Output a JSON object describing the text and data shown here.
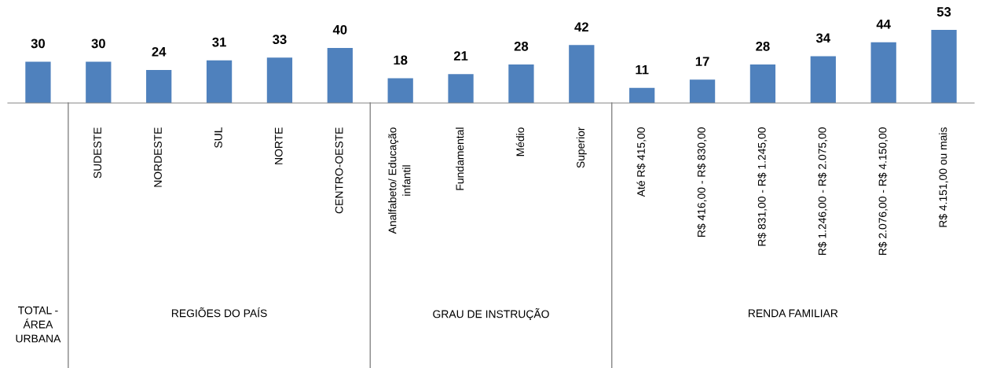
{
  "chart_data": [
    {
      "type": "bar",
      "categories": [
        "TOTAL -\nÁREA\nURBANA"
      ],
      "values": [
        30
      ],
      "color": "#4f81bd",
      "data_labels": true,
      "tick_labels": "x"
    },
    {
      "type": "bar",
      "xlabel": "REGIÕES DO PAÍS",
      "categories": [
        "SUDESTE",
        "NORDESTE",
        "SUL",
        "NORTE",
        "CENTRO-OESTE"
      ],
      "values": [
        30,
        24,
        31,
        33,
        40
      ],
      "color": "#4f81bd",
      "data_labels": true,
      "tick_labels": "x"
    },
    {
      "type": "bar",
      "xlabel": "GRAU DE INSTRUÇÃO",
      "categories": [
        "Analfabeto/ Educação\ninfantil",
        "Fundamental",
        "Médio",
        "Superior"
      ],
      "values": [
        18,
        21,
        28,
        42
      ],
      "color": "#4f81bd",
      "data_labels": true,
      "tick_labels": "x"
    },
    {
      "type": "bar",
      "xlabel": "RENDA FAMILIAR",
      "categories": [
        "Até R$ 415,00",
        "R$ 416,00 - R$ 830,00",
        "R$ 831,00 - R$ 1.245,00",
        "R$ 1.246,00 - R$ 2.075,00",
        "R$ 2.076,00 - R$ 4.150,00",
        "R$ 4.151,00 ou mais"
      ],
      "values": [
        11,
        17,
        28,
        34,
        44,
        53
      ],
      "color": "#4f81bd",
      "data_labels": true,
      "tick_labels": "x"
    }
  ]
}
